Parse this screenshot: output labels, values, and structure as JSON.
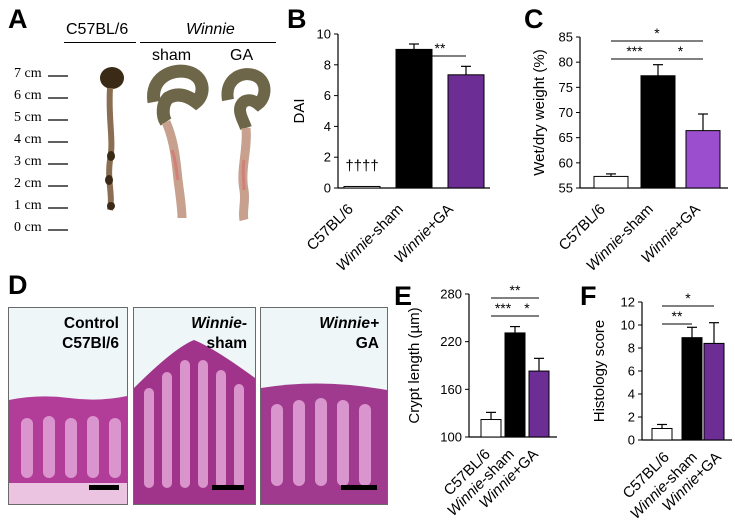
{
  "panels": {
    "A": {
      "label": "A",
      "col1": "C57BL/6",
      "col2": "Winnie",
      "sub_sham": "sham",
      "sub_ga": "GA",
      "ruler": [
        "7 cm",
        "6 cm",
        "5 cm",
        "4 cm",
        "3 cm",
        "2 cm",
        "1 cm",
        "0 cm"
      ]
    },
    "B": {
      "label": "B"
    },
    "C": {
      "label": "C"
    },
    "D": {
      "label": "D",
      "img1_line1": "Control",
      "img1_line2": "C57Bl/6",
      "img2_line1": "Winnie-",
      "img2_line2": "sham",
      "img3_line1": "Winnie+",
      "img3_line2": "GA"
    },
    "E": {
      "label": "E"
    },
    "F": {
      "label": "F"
    }
  },
  "colors": {
    "white_bar": "#ffffff",
    "black_bar": "#000000",
    "purple_dark": "#6c2d94",
    "purple_light": "#9b4fce",
    "sham_histo": "#a0348a"
  },
  "chart_data": [
    {
      "id": "B",
      "type": "bar",
      "categories": [
        "C57BL/6",
        "Winnie-sham",
        "Winnie+GA"
      ],
      "values": [
        0.1,
        9.0,
        7.35
      ],
      "errors": [
        0,
        0.35,
        0.55
      ],
      "colors": [
        "#ffffff",
        "#000000",
        "#6c2d94"
      ],
      "ylabel": "DAI",
      "ylim": [
        0,
        10
      ],
      "yticks": [
        0,
        2,
        4,
        6,
        8,
        10
      ],
      "annotations": [
        {
          "text": "††††",
          "on": 0
        },
        {
          "text": "**",
          "from": 1,
          "to": 2
        }
      ]
    },
    {
      "id": "C",
      "type": "bar",
      "categories": [
        "C57BL/6",
        "Winnie-sham",
        "Winnie+GA"
      ],
      "values": [
        57.3,
        77.3,
        66.4
      ],
      "errors": [
        0.5,
        2.2,
        3.3
      ],
      "colors": [
        "#ffffff",
        "#000000",
        "#9b4fce"
      ],
      "ylabel": "Wet/dry weight (%)",
      "ylim": [
        55,
        85
      ],
      "yticks": [
        55,
        60,
        65,
        70,
        75,
        80,
        85
      ],
      "annotations": [
        {
          "text": "*",
          "from": 0,
          "to": 2
        },
        {
          "text": "***",
          "from": 0,
          "to": 1
        },
        {
          "text": "*",
          "from": 1,
          "to": 2
        }
      ]
    },
    {
      "id": "E",
      "type": "bar",
      "categories": [
        "C57BL/6",
        "Winnie-sham",
        "Winnie+GA"
      ],
      "values": [
        122,
        231,
        183
      ],
      "errors": [
        9,
        8,
        16
      ],
      "colors": [
        "#ffffff",
        "#000000",
        "#6c2d94"
      ],
      "ylabel": "Crypt length (µm)",
      "ylim": [
        100,
        280
      ],
      "yticks": [
        100,
        160,
        220,
        280
      ],
      "annotations": [
        {
          "text": "**",
          "from": 0,
          "to": 2
        },
        {
          "text": "***",
          "from": 0,
          "to": 1
        },
        {
          "text": "*",
          "from": 1,
          "to": 2
        }
      ]
    },
    {
      "id": "F",
      "type": "bar",
      "categories": [
        "C57BL/6",
        "Winnie-sham",
        "Winnie+GA"
      ],
      "values": [
        1.0,
        8.9,
        8.4
      ],
      "errors": [
        0.35,
        0.9,
        1.8
      ],
      "colors": [
        "#ffffff",
        "#000000",
        "#6c2d94"
      ],
      "ylabel": "Histology score",
      "ylim": [
        0,
        12
      ],
      "yticks": [
        0,
        2,
        4,
        6,
        8,
        10,
        12
      ],
      "annotations": [
        {
          "text": "*",
          "from": 0,
          "to": 2
        },
        {
          "text": "**",
          "from": 0,
          "to": 1
        }
      ]
    }
  ]
}
